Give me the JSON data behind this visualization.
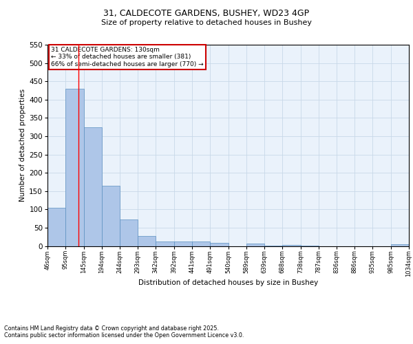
{
  "title1": "31, CALDECOTE GARDENS, BUSHEY, WD23 4GP",
  "title2": "Size of property relative to detached houses in Bushey",
  "xlabel": "Distribution of detached houses by size in Bushey",
  "ylabel": "Number of detached properties",
  "bar_edges": [
    46,
    95,
    145,
    194,
    244,
    293,
    342,
    392,
    441,
    491,
    540,
    589,
    639,
    688,
    738,
    787,
    836,
    886,
    935,
    985,
    1034
  ],
  "bar_heights": [
    105,
    430,
    325,
    165,
    73,
    28,
    12,
    13,
    12,
    9,
    0,
    6,
    1,
    2,
    1,
    0,
    0,
    0,
    0,
    4
  ],
  "bar_color": "#aec6e8",
  "bar_edge_color": "#5a8fc0",
  "red_line_x": 130,
  "annotation_text": "31 CALDECOTE GARDENS: 130sqm\n← 33% of detached houses are smaller (381)\n66% of semi-detached houses are larger (770) →",
  "annotation_box_color": "#ffffff",
  "annotation_box_edge": "#cc0000",
  "ylim": [
    0,
    550
  ],
  "yticks": [
    0,
    50,
    100,
    150,
    200,
    250,
    300,
    350,
    400,
    450,
    500,
    550
  ],
  "grid_color": "#c8d8e8",
  "bg_color": "#eaf2fb",
  "footer1": "Contains HM Land Registry data © Crown copyright and database right 2025.",
  "footer2": "Contains public sector information licensed under the Open Government Licence v3.0."
}
